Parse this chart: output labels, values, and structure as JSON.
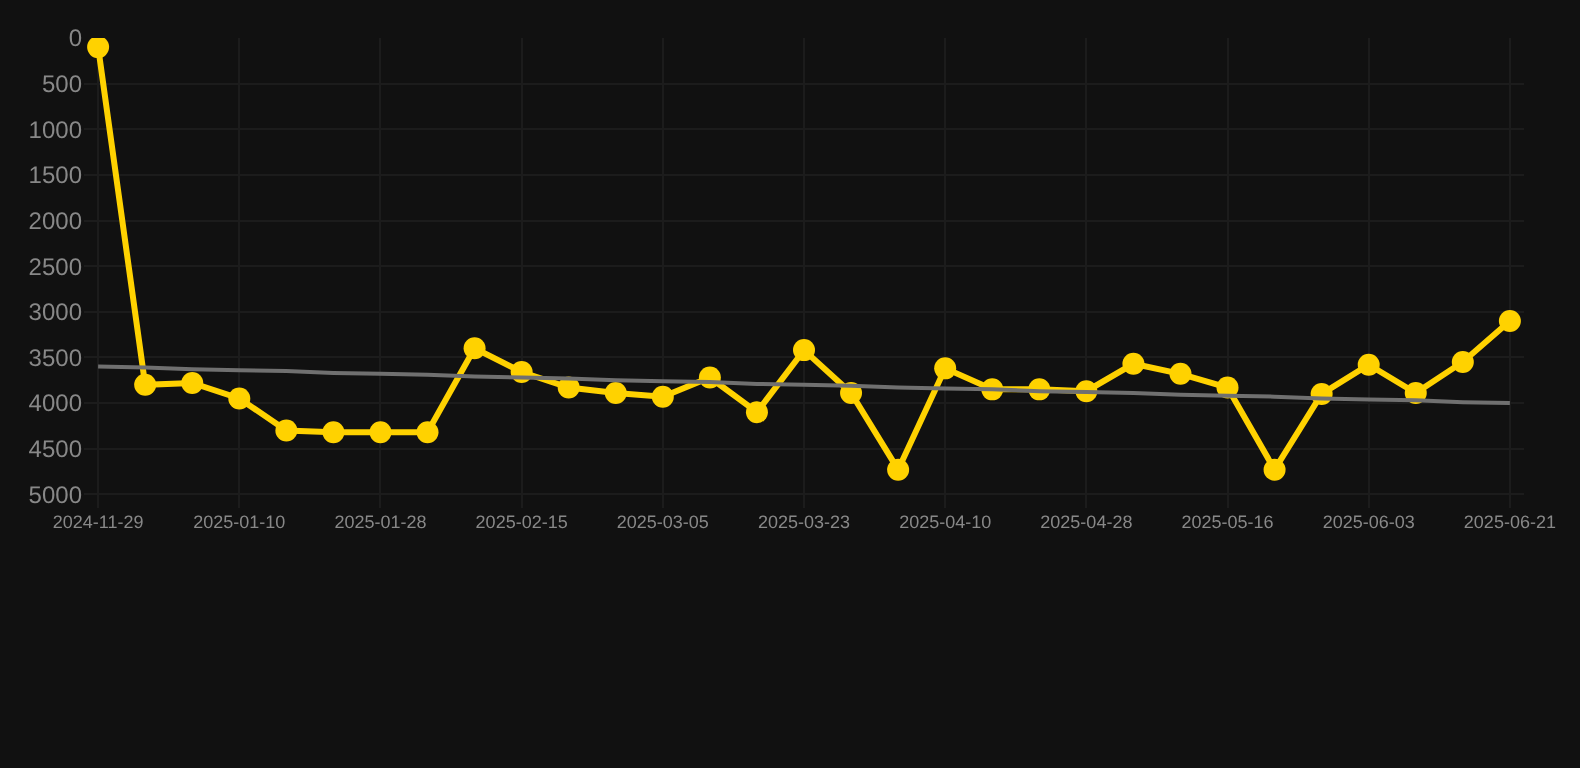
{
  "chart_data": {
    "type": "line",
    "categories": [
      "2024-11-29",
      null,
      null,
      "2025-01-10",
      null,
      null,
      "2025-01-28",
      null,
      null,
      "2025-02-15",
      null,
      null,
      "2025-03-05",
      null,
      null,
      "2025-03-23",
      null,
      null,
      "2025-04-10",
      null,
      null,
      "2025-04-28",
      null,
      null,
      "2025-05-16",
      null,
      null,
      "2025-06-03",
      null,
      null,
      "2025-06-21"
    ],
    "series": [
      {
        "color": "#ffd200",
        "marker": "circle",
        "values": [
          100,
          3800,
          3780,
          3950,
          4300,
          4320,
          4320,
          4320,
          3400,
          3660,
          3830,
          3890,
          3930,
          3720,
          4100,
          3420,
          3890,
          4730,
          3620,
          3850,
          3850,
          3870,
          3570,
          3680,
          3830,
          4730,
          3900,
          3580,
          3890,
          3550,
          3100
        ]
      },
      {
        "type": "line",
        "color": "#707070",
        "marker": "none",
        "values": [
          3600,
          3610,
          3630,
          3640,
          3650,
          3670,
          3680,
          3690,
          3710,
          3720,
          3730,
          3750,
          3760,
          3770,
          3790,
          3800,
          3810,
          3830,
          3840,
          3850,
          3870,
          3880,
          3890,
          3910,
          3920,
          3930,
          3950,
          3960,
          3970,
          3990,
          4000
        ]
      }
    ],
    "ylim": [
      5150,
      0
    ],
    "yticks": [
      0,
      500,
      1000,
      1500,
      2000,
      2500,
      3000,
      3500,
      4000,
      4500,
      5000
    ],
    "grid": true
  }
}
